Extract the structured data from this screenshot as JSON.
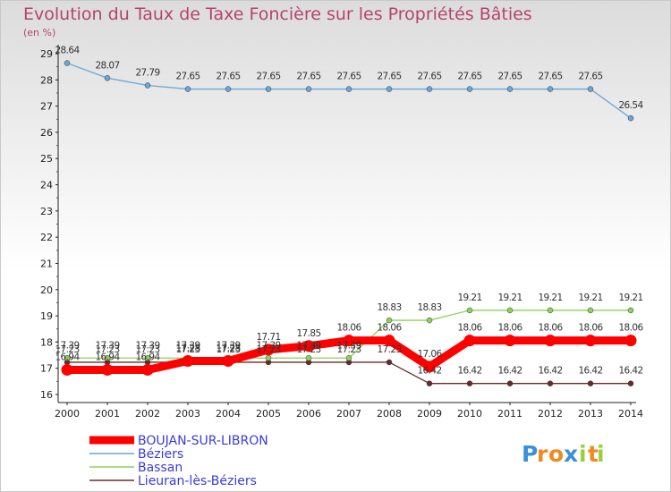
{
  "chart_data": {
    "type": "line",
    "title": "Evolution du Taux de Taxe Foncière sur les Propriétés Bâties",
    "ylabel": "(en %)",
    "x": [
      "2000",
      "2001",
      "2002",
      "2003",
      "2004",
      "2005",
      "2006",
      "2007",
      "2008",
      "2009",
      "2010",
      "2011",
      "2012",
      "2013",
      "2014"
    ],
    "yticks": [
      "16",
      "17",
      "18",
      "19",
      "20",
      "21",
      "22",
      "23",
      "24",
      "25",
      "26",
      "27",
      "28",
      "29"
    ],
    "ylim": [
      16,
      29
    ],
    "series": [
      {
        "name": "Lieuran-lès-Béziers",
        "color": "#6b2a2a",
        "values": [
          17.23,
          17.23,
          17.23,
          17.23,
          17.23,
          17.23,
          17.23,
          17.23,
          17.23,
          16.42,
          16.42,
          16.42,
          16.42,
          16.42,
          16.42
        ],
        "labels": [
          "17.23",
          "17.23",
          "17.23",
          "17.23",
          "17.23",
          "17.23",
          "17.23",
          "17.23",
          "17.23",
          "16.42",
          "16.42",
          "16.42",
          "16.42",
          "16.42",
          "16.42"
        ]
      },
      {
        "name": "Bassan",
        "color": "#8fd25a",
        "values": [
          17.39,
          17.39,
          17.39,
          17.39,
          17.39,
          17.39,
          17.39,
          17.39,
          18.83,
          18.83,
          19.21,
          19.21,
          19.21,
          19.21,
          19.21
        ],
        "labels": [
          "17.39",
          "17.39",
          "17.39",
          "17.39",
          "17.39",
          "17.39",
          "17.39",
          "17.39",
          "18.83",
          "18.83",
          "19.21",
          "19.21",
          "19.21",
          "19.21",
          "19.21"
        ]
      },
      {
        "name": "Béziers",
        "color": "#6aa6d8",
        "values": [
          28.64,
          28.07,
          27.79,
          27.65,
          27.65,
          27.65,
          27.65,
          27.65,
          27.65,
          27.65,
          27.65,
          27.65,
          27.65,
          27.65,
          26.54
        ],
        "labels": [
          "28.64",
          "28.07",
          "27.79",
          "27.65",
          "27.65",
          "27.65",
          "27.65",
          "27.65",
          "27.65",
          "27.65",
          "27.65",
          "27.65",
          "27.65",
          "27.65",
          "26.54"
        ]
      },
      {
        "name": "BOUJAN-SUR-LIBRON",
        "color": "#ff0000",
        "values": [
          16.94,
          16.94,
          16.94,
          17.28,
          17.28,
          17.71,
          17.85,
          18.06,
          18.06,
          17.06,
          18.06,
          18.06,
          18.06,
          18.06,
          18.06
        ],
        "labels": [
          "16.94",
          "16.94",
          "16.94",
          "17.28",
          "17.28",
          "17.71",
          "17.85",
          "18.06",
          "18.06",
          "17.06",
          "18.06",
          "18.06",
          "18.06",
          "18.06",
          "18.06"
        ]
      }
    ],
    "legend": [
      "BOUJAN-SUR-LIBRON",
      "Béziers",
      "Bassan",
      "Lieuran-lès-Béziers"
    ],
    "legend_colors": [
      "#ff0000",
      "#6aa6d8",
      "#8fd25a",
      "#6b2a2a"
    ],
    "legend_placement": "bottom-left",
    "grid": false
  },
  "brand": {
    "letters": [
      "P",
      "r",
      "o",
      "x",
      "i",
      "t",
      "i"
    ],
    "colors": [
      "#3b8fd8",
      "#f08a1d",
      "#f08a1d",
      "#3b8fd8",
      "#9bcf3a",
      "#f08a1d",
      "#9bcf3a"
    ]
  }
}
